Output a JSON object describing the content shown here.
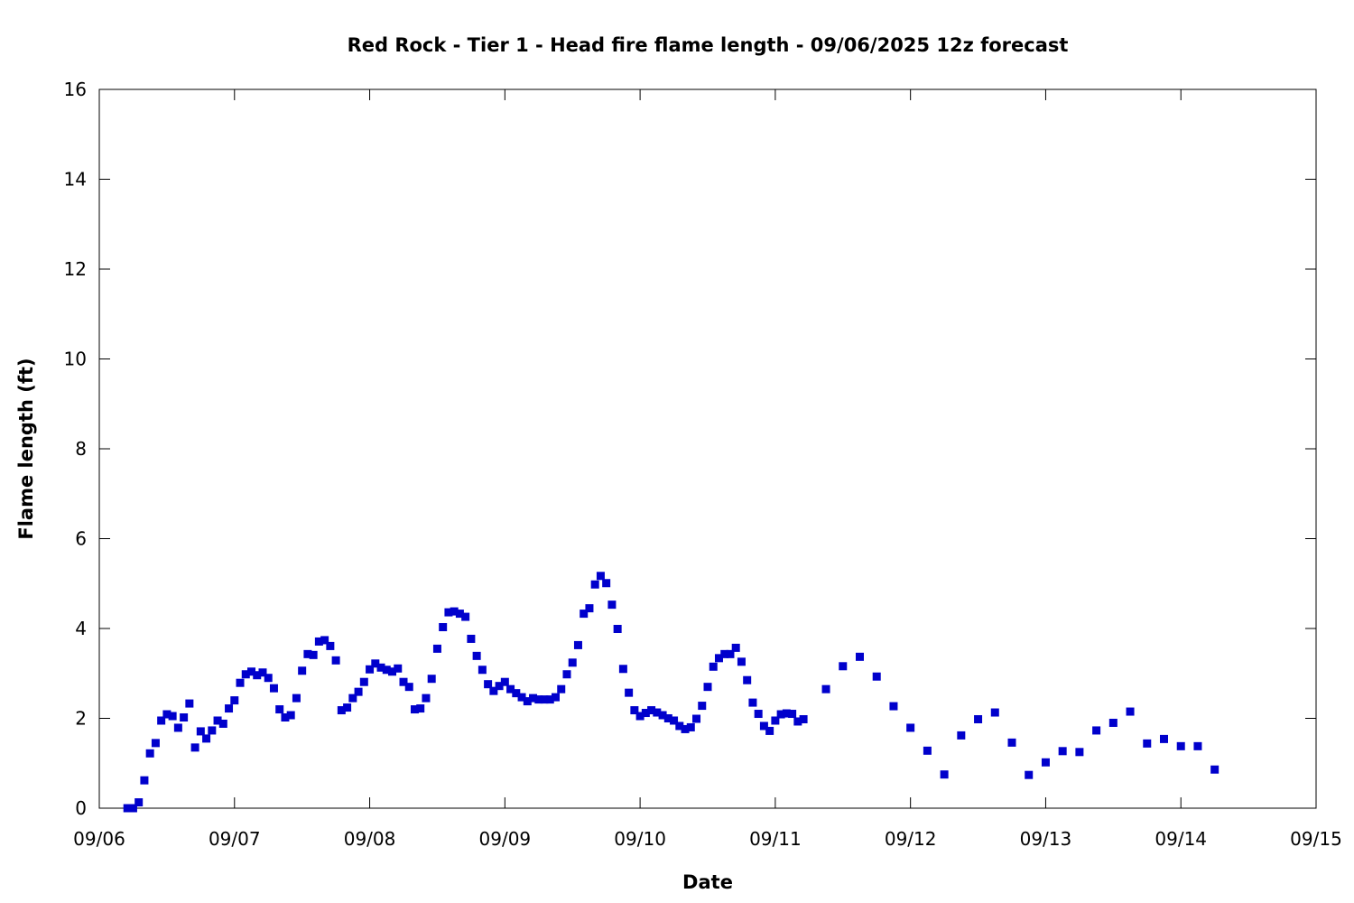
{
  "chart_data": {
    "type": "scatter",
    "title": "Red Rock - Tier 1 - Head fire flame length - 09/06/2025 12z forecast",
    "xlabel": "Date",
    "ylabel": "Flame length (ft)",
    "x_axis": {
      "type": "date",
      "start": "2025-09-06",
      "end": "2025-09-15",
      "ticks": [
        "09/06",
        "09/07",
        "09/08",
        "09/09",
        "09/10",
        "09/11",
        "09/12",
        "09/13",
        "09/14",
        "09/15"
      ]
    },
    "y_axis": {
      "min": 0,
      "max": 16,
      "ticks": [
        "0",
        "2",
        "4",
        "6",
        "8",
        "10",
        "12",
        "14",
        "16"
      ]
    },
    "grid": false,
    "legend": "none",
    "marker": "square",
    "color": "#0000cc",
    "series": [
      {
        "points": [
          [
            "2025-09-06 05:00",
            0.0
          ],
          [
            "2025-09-06 06:00",
            0.0
          ],
          [
            "2025-09-06 07:00",
            0.13
          ],
          [
            "2025-09-06 08:00",
            0.62
          ],
          [
            "2025-09-06 09:00",
            1.22
          ],
          [
            "2025-09-06 10:00",
            1.45
          ],
          [
            "2025-09-06 11:00",
            1.95
          ],
          [
            "2025-09-06 12:00",
            2.09
          ],
          [
            "2025-09-06 13:00",
            2.05
          ],
          [
            "2025-09-06 14:00",
            1.79
          ],
          [
            "2025-09-06 15:00",
            2.02
          ],
          [
            "2025-09-06 16:00",
            2.33
          ],
          [
            "2025-09-06 17:00",
            1.35
          ],
          [
            "2025-09-06 18:00",
            1.71
          ],
          [
            "2025-09-06 19:00",
            1.55
          ],
          [
            "2025-09-06 20:00",
            1.73
          ],
          [
            "2025-09-06 21:00",
            1.95
          ],
          [
            "2025-09-06 22:00",
            1.88
          ],
          [
            "2025-09-06 23:00",
            2.22
          ],
          [
            "2025-09-07 00:00",
            2.4
          ],
          [
            "2025-09-07 01:00",
            2.79
          ],
          [
            "2025-09-07 02:00",
            2.98
          ],
          [
            "2025-09-07 03:00",
            3.04
          ],
          [
            "2025-09-07 04:00",
            2.96
          ],
          [
            "2025-09-07 05:00",
            3.02
          ],
          [
            "2025-09-07 06:00",
            2.9
          ],
          [
            "2025-09-07 07:00",
            2.67
          ],
          [
            "2025-09-07 08:00",
            2.2
          ],
          [
            "2025-09-07 09:00",
            2.02
          ],
          [
            "2025-09-07 10:00",
            2.07
          ],
          [
            "2025-09-07 11:00",
            2.45
          ],
          [
            "2025-09-07 12:00",
            3.06
          ],
          [
            "2025-09-07 13:00",
            3.43
          ],
          [
            "2025-09-07 14:00",
            3.41
          ],
          [
            "2025-09-07 15:00",
            3.71
          ],
          [
            "2025-09-07 16:00",
            3.74
          ],
          [
            "2025-09-07 17:00",
            3.61
          ],
          [
            "2025-09-07 18:00",
            3.29
          ],
          [
            "2025-09-07 19:00",
            2.18
          ],
          [
            "2025-09-07 20:00",
            2.24
          ],
          [
            "2025-09-07 21:00",
            2.45
          ],
          [
            "2025-09-07 22:00",
            2.59
          ],
          [
            "2025-09-07 23:00",
            2.81
          ],
          [
            "2025-09-08 00:00",
            3.09
          ],
          [
            "2025-09-08 01:00",
            3.22
          ],
          [
            "2025-09-08 02:00",
            3.13
          ],
          [
            "2025-09-08 03:00",
            3.08
          ],
          [
            "2025-09-08 04:00",
            3.04
          ],
          [
            "2025-09-08 05:00",
            3.11
          ],
          [
            "2025-09-08 06:00",
            2.81
          ],
          [
            "2025-09-08 07:00",
            2.7
          ],
          [
            "2025-09-08 08:00",
            2.2
          ],
          [
            "2025-09-08 09:00",
            2.22
          ],
          [
            "2025-09-08 10:00",
            2.45
          ],
          [
            "2025-09-08 11:00",
            2.88
          ],
          [
            "2025-09-08 12:00",
            3.55
          ],
          [
            "2025-09-08 13:00",
            4.03
          ],
          [
            "2025-09-08 14:00",
            4.36
          ],
          [
            "2025-09-08 15:00",
            4.38
          ],
          [
            "2025-09-08 16:00",
            4.33
          ],
          [
            "2025-09-08 17:00",
            4.26
          ],
          [
            "2025-09-08 18:00",
            3.77
          ],
          [
            "2025-09-08 19:00",
            3.39
          ],
          [
            "2025-09-08 20:00",
            3.08
          ],
          [
            "2025-09-08 21:00",
            2.76
          ],
          [
            "2025-09-08 22:00",
            2.61
          ],
          [
            "2025-09-08 23:00",
            2.72
          ],
          [
            "2025-09-09 00:00",
            2.81
          ],
          [
            "2025-09-09 01:00",
            2.65
          ],
          [
            "2025-09-09 02:00",
            2.56
          ],
          [
            "2025-09-09 03:00",
            2.47
          ],
          [
            "2025-09-09 04:00",
            2.38
          ],
          [
            "2025-09-09 05:00",
            2.45
          ],
          [
            "2025-09-09 06:00",
            2.42
          ],
          [
            "2025-09-09 07:00",
            2.42
          ],
          [
            "2025-09-09 08:00",
            2.42
          ],
          [
            "2025-09-09 09:00",
            2.47
          ],
          [
            "2025-09-09 10:00",
            2.65
          ],
          [
            "2025-09-09 11:00",
            2.98
          ],
          [
            "2025-09-09 12:00",
            3.24
          ],
          [
            "2025-09-09 13:00",
            3.63
          ],
          [
            "2025-09-09 14:00",
            4.33
          ],
          [
            "2025-09-09 15:00",
            4.45
          ],
          [
            "2025-09-09 16:00",
            4.98
          ],
          [
            "2025-09-09 17:00",
            5.17
          ],
          [
            "2025-09-09 18:00",
            5.01
          ],
          [
            "2025-09-09 19:00",
            4.53
          ],
          [
            "2025-09-09 20:00",
            3.99
          ],
          [
            "2025-09-09 21:00",
            3.1
          ],
          [
            "2025-09-09 22:00",
            2.57
          ],
          [
            "2025-09-09 23:00",
            2.18
          ],
          [
            "2025-09-10 00:00",
            2.05
          ],
          [
            "2025-09-10 01:00",
            2.12
          ],
          [
            "2025-09-10 02:00",
            2.18
          ],
          [
            "2025-09-10 03:00",
            2.13
          ],
          [
            "2025-09-10 04:00",
            2.07
          ],
          [
            "2025-09-10 05:00",
            2.0
          ],
          [
            "2025-09-10 06:00",
            1.95
          ],
          [
            "2025-09-10 07:00",
            1.83
          ],
          [
            "2025-09-10 08:00",
            1.76
          ],
          [
            "2025-09-10 09:00",
            1.8
          ],
          [
            "2025-09-10 10:00",
            1.99
          ],
          [
            "2025-09-10 11:00",
            2.28
          ],
          [
            "2025-09-10 12:00",
            2.7
          ],
          [
            "2025-09-10 13:00",
            3.15
          ],
          [
            "2025-09-10 14:00",
            3.34
          ],
          [
            "2025-09-10 15:00",
            3.43
          ],
          [
            "2025-09-10 16:00",
            3.43
          ],
          [
            "2025-09-10 17:00",
            3.57
          ],
          [
            "2025-09-10 18:00",
            3.26
          ],
          [
            "2025-09-10 19:00",
            2.85
          ],
          [
            "2025-09-10 20:00",
            2.35
          ],
          [
            "2025-09-10 21:00",
            2.1
          ],
          [
            "2025-09-10 22:00",
            1.83
          ],
          [
            "2025-09-10 23:00",
            1.72
          ],
          [
            "2025-09-11 00:00",
            1.95
          ],
          [
            "2025-09-11 01:00",
            2.09
          ],
          [
            "2025-09-11 02:00",
            2.11
          ],
          [
            "2025-09-11 03:00",
            2.1
          ],
          [
            "2025-09-11 04:00",
            1.93
          ],
          [
            "2025-09-11 05:00",
            1.98
          ],
          [
            "2025-09-11 09:00",
            2.65
          ],
          [
            "2025-09-11 12:00",
            3.16
          ],
          [
            "2025-09-11 15:00",
            3.37
          ],
          [
            "2025-09-11 18:00",
            2.93
          ],
          [
            "2025-09-11 21:00",
            2.27
          ],
          [
            "2025-09-12 00:00",
            1.79
          ],
          [
            "2025-09-12 03:00",
            1.28
          ],
          [
            "2025-09-12 06:00",
            0.75
          ],
          [
            "2025-09-12 09:00",
            1.62
          ],
          [
            "2025-09-12 12:00",
            1.98
          ],
          [
            "2025-09-12 15:00",
            2.13
          ],
          [
            "2025-09-12 18:00",
            1.46
          ],
          [
            "2025-09-12 21:00",
            0.74
          ],
          [
            "2025-09-13 00:00",
            1.02
          ],
          [
            "2025-09-13 03:00",
            1.27
          ],
          [
            "2025-09-13 06:00",
            1.25
          ],
          [
            "2025-09-13 09:00",
            1.73
          ],
          [
            "2025-09-13 12:00",
            1.9
          ],
          [
            "2025-09-13 15:00",
            2.15
          ],
          [
            "2025-09-13 18:00",
            1.44
          ],
          [
            "2025-09-13 21:00",
            1.54
          ],
          [
            "2025-09-14 00:00",
            1.38
          ],
          [
            "2025-09-14 03:00",
            1.38
          ],
          [
            "2025-09-14 06:00",
            0.86
          ]
        ]
      }
    ]
  }
}
